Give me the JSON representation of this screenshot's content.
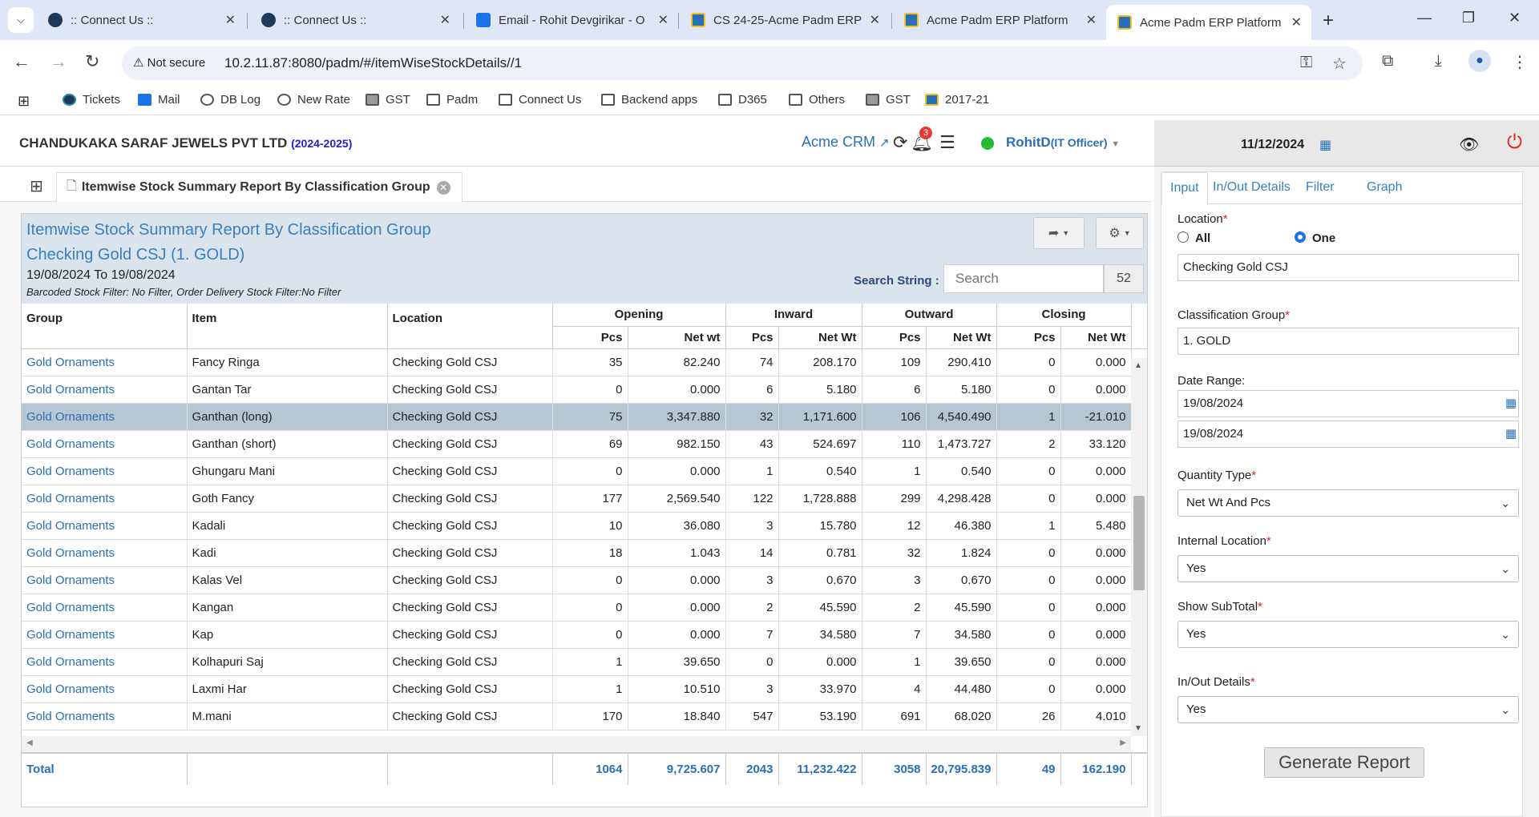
{
  "browser": {
    "tabs": [
      {
        "title": ":: Connect Us ::",
        "icon": "react-icon"
      },
      {
        "title": ":: Connect Us ::",
        "icon": "react-icon"
      },
      {
        "title": "Email - Rohit Devgirikar - O",
        "icon": "outlook-icon"
      },
      {
        "title": "CS 24-25-Acme Padm ERP",
        "icon": "erp-icon"
      },
      {
        "title": "Acme Padm ERP Platform",
        "icon": "erp-icon"
      },
      {
        "title": "Acme Padm ERP Platform",
        "icon": "erp-icon"
      }
    ],
    "active_tab": 5,
    "not_secure_label": "Not secure",
    "url": "10.2.11.87:8080/padm/#/itemWiseStockDetails//1",
    "bookmarks": [
      "Tickets",
      "Mail",
      "DB Log",
      "New Rate",
      "GST",
      "Padm",
      "Connect Us",
      "Backend apps",
      "D365",
      "Others",
      "GST",
      "2017-21"
    ]
  },
  "header": {
    "company": "CHANDUKAKA SARAF JEWELS PVT LTD",
    "fiscal_year": "(2024-2025)",
    "crm_link": "Acme CRM",
    "notification_count": "3",
    "user": "RohitD",
    "role": "(IT Officer)",
    "status_color": "#22bb33"
  },
  "right_header": {
    "date": "11/12/2024"
  },
  "report_tab": {
    "title": "Itemwise Stock Summary Report By Classification Group"
  },
  "report": {
    "title": "Itemwise Stock Summary Report By Classification Group",
    "subtitle": "Checking Gold CSJ (1. GOLD)",
    "date_range": "19/08/2024 To 19/08/2024",
    "filter_note": "Barcoded Stock Filter: No Filter, Order Delivery Stock Filter:No Filter",
    "search_label": "Search String :",
    "search_placeholder": "Search",
    "record_count": "52",
    "columns": {
      "group": "Group",
      "item": "Item",
      "location": "Location",
      "opening": "Opening",
      "inward": "Inward",
      "outward": "Outward",
      "closing": "Closing",
      "pcs": "Pcs",
      "netwt_opening": "Net wt",
      "netwt": "Net Wt"
    },
    "rows": [
      {
        "group": "Gold Ornaments",
        "item": "Fancy Ringa",
        "location": "Checking Gold CSJ",
        "op_pcs": "35",
        "op_wt": "82.240",
        "in_pcs": "74",
        "in_wt": "208.170",
        "out_pcs": "109",
        "out_wt": "290.410",
        "cl_pcs": "0",
        "cl_wt": "0.000"
      },
      {
        "group": "Gold Ornaments",
        "item": "Gantan Tar",
        "location": "Checking Gold CSJ",
        "op_pcs": "0",
        "op_wt": "0.000",
        "in_pcs": "6",
        "in_wt": "5.180",
        "out_pcs": "6",
        "out_wt": "5.180",
        "cl_pcs": "0",
        "cl_wt": "0.000"
      },
      {
        "group": "Gold Ornaments",
        "item": "Ganthan (long)",
        "location": "Checking Gold CSJ",
        "op_pcs": "75",
        "op_wt": "3,347.880",
        "in_pcs": "32",
        "in_wt": "1,171.600",
        "out_pcs": "106",
        "out_wt": "4,540.490",
        "cl_pcs": "1",
        "cl_wt": "-21.010",
        "selected": true
      },
      {
        "group": "Gold Ornaments",
        "item": "Ganthan (short)",
        "location": "Checking Gold CSJ",
        "op_pcs": "69",
        "op_wt": "982.150",
        "in_pcs": "43",
        "in_wt": "524.697",
        "out_pcs": "110",
        "out_wt": "1,473.727",
        "cl_pcs": "2",
        "cl_wt": "33.120"
      },
      {
        "group": "Gold Ornaments",
        "item": "Ghungaru Mani",
        "location": "Checking Gold CSJ",
        "op_pcs": "0",
        "op_wt": "0.000",
        "in_pcs": "1",
        "in_wt": "0.540",
        "out_pcs": "1",
        "out_wt": "0.540",
        "cl_pcs": "0",
        "cl_wt": "0.000"
      },
      {
        "group": "Gold Ornaments",
        "item": "Goth Fancy",
        "location": "Checking Gold CSJ",
        "op_pcs": "177",
        "op_wt": "2,569.540",
        "in_pcs": "122",
        "in_wt": "1,728.888",
        "out_pcs": "299",
        "out_wt": "4,298.428",
        "cl_pcs": "0",
        "cl_wt": "0.000"
      },
      {
        "group": "Gold Ornaments",
        "item": "Kadali",
        "location": "Checking Gold CSJ",
        "op_pcs": "10",
        "op_wt": "36.080",
        "in_pcs": "3",
        "in_wt": "15.780",
        "out_pcs": "12",
        "out_wt": "46.380",
        "cl_pcs": "1",
        "cl_wt": "5.480"
      },
      {
        "group": "Gold Ornaments",
        "item": "Kadi",
        "location": "Checking Gold CSJ",
        "op_pcs": "18",
        "op_wt": "1.043",
        "in_pcs": "14",
        "in_wt": "0.781",
        "out_pcs": "32",
        "out_wt": "1.824",
        "cl_pcs": "0",
        "cl_wt": "0.000"
      },
      {
        "group": "Gold Ornaments",
        "item": "Kalas Vel",
        "location": "Checking Gold CSJ",
        "op_pcs": "0",
        "op_wt": "0.000",
        "in_pcs": "3",
        "in_wt": "0.670",
        "out_pcs": "3",
        "out_wt": "0.670",
        "cl_pcs": "0",
        "cl_wt": "0.000"
      },
      {
        "group": "Gold Ornaments",
        "item": "Kangan",
        "location": "Checking Gold CSJ",
        "op_pcs": "0",
        "op_wt": "0.000",
        "in_pcs": "2",
        "in_wt": "45.590",
        "out_pcs": "2",
        "out_wt": "45.590",
        "cl_pcs": "0",
        "cl_wt": "0.000"
      },
      {
        "group": "Gold Ornaments",
        "item": "Kap",
        "location": "Checking Gold CSJ",
        "op_pcs": "0",
        "op_wt": "0.000",
        "in_pcs": "7",
        "in_wt": "34.580",
        "out_pcs": "7",
        "out_wt": "34.580",
        "cl_pcs": "0",
        "cl_wt": "0.000"
      },
      {
        "group": "Gold Ornaments",
        "item": "Kolhapuri Saj",
        "location": "Checking Gold CSJ",
        "op_pcs": "1",
        "op_wt": "39.650",
        "in_pcs": "0",
        "in_wt": "0.000",
        "out_pcs": "1",
        "out_wt": "39.650",
        "cl_pcs": "0",
        "cl_wt": "0.000"
      },
      {
        "group": "Gold Ornaments",
        "item": "Laxmi Har",
        "location": "Checking Gold CSJ",
        "op_pcs": "1",
        "op_wt": "10.510",
        "in_pcs": "3",
        "in_wt": "33.970",
        "out_pcs": "4",
        "out_wt": "44.480",
        "cl_pcs": "0",
        "cl_wt": "0.000"
      },
      {
        "group": "Gold Ornaments",
        "item": "M.mani",
        "location": "Checking Gold CSJ",
        "op_pcs": "170",
        "op_wt": "18.840",
        "in_pcs": "547",
        "in_wt": "53.190",
        "out_pcs": "691",
        "out_wt": "68.020",
        "cl_pcs": "26",
        "cl_wt": "4.010"
      }
    ],
    "total": {
      "label": "Total",
      "op_pcs": "1064",
      "op_wt": "9,725.607",
      "in_pcs": "2043",
      "in_wt": "11,232.422",
      "out_pcs": "3058",
      "out_wt": "20,795.839",
      "cl_pcs": "49",
      "cl_wt": "162.190"
    }
  },
  "panel": {
    "tabs": [
      "Input",
      "In/Out Details",
      "Filter",
      "Graph"
    ],
    "location_label": "Location",
    "radio_all": "All",
    "radio_one": "One",
    "location_value": "Checking Gold CSJ",
    "classification_label": "Classification Group",
    "classification_value": "1. GOLD",
    "date_range_label": "Date Range:",
    "date_from": "19/08/2024",
    "date_to": "19/08/2024",
    "quantity_type_label": "Quantity Type",
    "quantity_type_value": "Net Wt And Pcs",
    "internal_location_label": "Internal Location",
    "internal_location_value": "Yes",
    "show_subtotal_label": "Show SubTotal",
    "show_subtotal_value": "Yes",
    "inout_details_label": "In/Out Details",
    "inout_details_value": "Yes",
    "generate_button": "Generate Report",
    "required_mark": "*"
  }
}
